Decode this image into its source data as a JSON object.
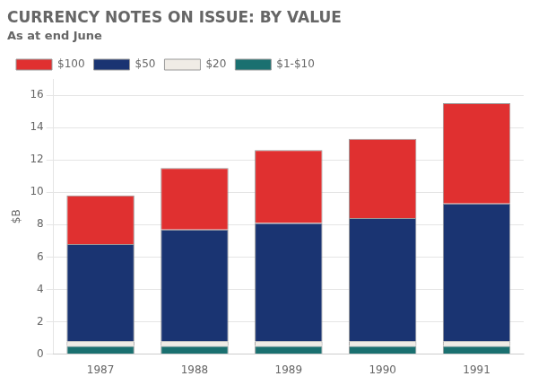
{
  "chart_data": {
    "type": "bar",
    "title": "CURRENCY NOTES ON ISSUE: BY VALUE",
    "subtitle": "As at end June",
    "ylabel": "$B",
    "categories": [
      "1987",
      "1988",
      "1989",
      "1990",
      "1991"
    ],
    "series": [
      {
        "name": "$1-$10",
        "color": "#1a7070",
        "values": [
          0.5,
          0.5,
          0.5,
          0.5,
          0.5
        ]
      },
      {
        "name": "$20",
        "color": "#f0ece6",
        "values": [
          0.3,
          0.3,
          0.3,
          0.3,
          0.3
        ]
      },
      {
        "name": "$50",
        "color": "#1a3472",
        "values": [
          6.0,
          6.9,
          7.3,
          7.6,
          8.5
        ]
      },
      {
        "name": "$100",
        "color": "#e03030",
        "values": [
          3.0,
          3.8,
          4.5,
          4.9,
          6.2
        ]
      }
    ],
    "stacked": true,
    "ylim": [
      0,
      17
    ],
    "yticks": [
      0,
      2,
      4,
      6,
      8,
      10,
      12,
      14,
      16
    ],
    "grid": true,
    "legend": "upper left"
  }
}
